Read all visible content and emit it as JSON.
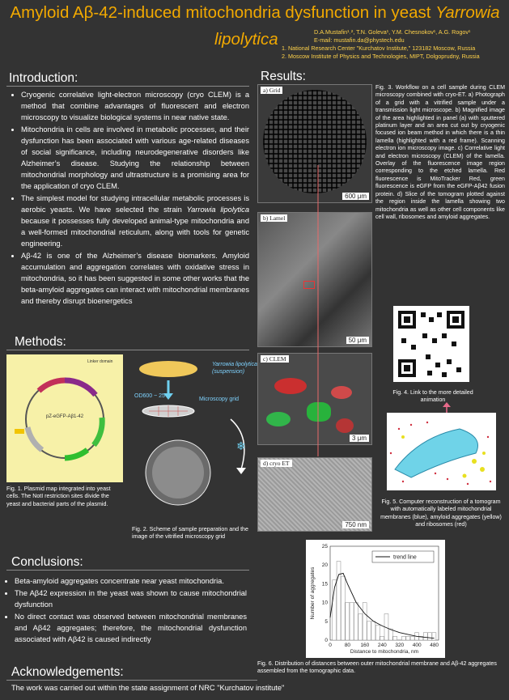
{
  "header": {
    "title_main": "Amyloid Aβ-42-induced mitochondria dysfunction in yeast ",
    "title_species": "Yarrowia",
    "title_species2": "lipolytica",
    "authors": "D.A.Mustafin¹˒², T.N. Goleva¹, Y.M. Chesnokov¹, A.G. Rogov¹",
    "email": "E-mail: mustafin.da@phystech.edu",
    "aff1": "1.  National Research Center \"Kurchatov Institute,\" 123182 Moscow, Russia",
    "aff2": "2.  Moscow Institute of Physics and Technologies, MIPT, Dolgoprudny, Russia"
  },
  "intro": {
    "heading": "Introduction:",
    "b1": "Cryogenic correlative light-electron microscopy (cryo CLEM) is a method  that combine advantages of fluorescent and electron microscopy to visualize biological systems in near native state.",
    "b2": "Mitochondria in cells are involved in metabolic processes, and their dysfunction has been associated with various age-related diseases of social significance, including neurodegenerative disorders like Alzheimer’s disease. Studying the relationship between mitochondrial morphology and ultrastructure is a promising area for the application of cryo CLEM.",
    "b3a": "The simplest model for studying intracellular metabolic processes is aerobic yeasts. We have selected the strain ",
    "b3i": "Yarrowia lipolytica",
    "b3b": " because it possesses fully developed animal-type mitochondria and a well-formed mitochondrial reticulum, along with tools for genetic engineering.",
    "b4": "Aβ-42 is one of the Alzheimer’s disease biomarkers. Amyloid accumulation and aggregation correlates with oxidative stress in mitochondria, so it has been suggested in some other works that the beta-amyloid aggregates can interact with mitochondrial membranes and thereby disrupt bioenergetics"
  },
  "methods": {
    "heading": "Methods:",
    "plasmid_name": "pZ-eGFP-Aβ1-42",
    "linker_label": "Linker domain",
    "fig1": "Fig. 1. Plasmid map integrated into yeast cells. The NotI restriction sites divide the yeast and bacterial parts of the plasmid.",
    "yeast_label": "Yarrowia lipolytica",
    "yeast_sub": "(suspension)",
    "od_label": "OD600 ~ 25",
    "grid_label": "Microscopy grid",
    "fig2": "Fig. 2. Scheme of sample preparation and the image of the vitrified microscopy grid"
  },
  "results": {
    "heading": "Results:",
    "panel_a": "a) Grid",
    "panel_b": "b) Lamel",
    "panel_c": "c) CLEM",
    "panel_d": "d) cryo ET",
    "scale_a": "600 μm",
    "scale_b": "50 μm",
    "scale_c": "3 μm",
    "scale_d": "750 nm",
    "fig3": "Fig. 3.  Workflow on a cell sample during CLEM microscopy combined with cryo-ET. a) Photograph of a grid with a vitrified sample under a transmission light microscope. b) Magnified image of the area highlighted in panel (a) with sputtered platinum layer and an area cut out by cryogenic focused ion beam method in which there is a thin lamella (highlighted with a red frame). Scanning electron ion microscopy image. c) Correlative light and electron microscopy (CLEM) of the lamella. Overlay of the fluorescence image region corresponding to the etched lamella. Red fluorescence is MitoTracker Red, green fluorescence is eGFP from the eGFP-Aβ42 fusion protein. d) Slice of the tomogram plotted against the region inside the lamella showing two mitochondria as well as other cell components like cell wall, ribosomes and amyloid aggregates.",
    "fig4": "Fig. 4. Link to the more detailed animation",
    "fig5": "Fig. 5. Computer reconstruction of a tomogram with automatically labeled mitochondrial membranes (blue), amyloid aggregates (yellow) and ribosomes (red)",
    "fig6": "Fig. 6. Distribution of distances between outer mitochondrial membrane and Aβ-42 aggregates assembled from the tomographic data."
  },
  "conclusions": {
    "heading": "Conclusions:",
    "c1": "Beta-amyloid aggregates concentrate near yeast mitochondria.",
    "c2": "The Aβ42 expression in the yeast was shown to cause mitochondrial dysfunction",
    "c3": "No direct contact was observed between mitochondrial membranes and Aβ42 aggregates; therefore, the mitochondrial dysfunction associated with Aβ42 is caused indirectly"
  },
  "ack": {
    "heading": "Acknowledgements:",
    "text": "The work was carried out within the state assignment of NRC \"Kurchatov institute\""
  },
  "chart_data": {
    "type": "bar",
    "x": [
      20,
      40,
      60,
      80,
      100,
      120,
      140,
      160,
      180,
      200,
      220,
      240,
      260,
      280,
      300,
      320,
      340,
      360,
      380,
      400,
      420,
      440,
      460,
      480
    ],
    "values": [
      16,
      21,
      17,
      10,
      10,
      10,
      7,
      10,
      5,
      5,
      4,
      1,
      7,
      3,
      1,
      0,
      1,
      1,
      1,
      2,
      1,
      2,
      2,
      2
    ],
    "trend": [
      [
        0,
        6
      ],
      [
        20,
        14
      ],
      [
        40,
        17.5
      ],
      [
        60,
        17.8
      ],
      [
        80,
        15
      ],
      [
        120,
        10
      ],
      [
        160,
        7
      ],
      [
        200,
        5
      ],
      [
        240,
        3.8
      ],
      [
        280,
        2.8
      ],
      [
        320,
        2
      ],
      [
        400,
        1
      ],
      [
        480,
        0.5
      ]
    ],
    "xlabel": "Distance to mitochondria, nm",
    "ylabel": "Number of aggregates",
    "xticks": [
      0,
      80,
      160,
      240,
      320,
      400,
      480
    ],
    "yticks": [
      0,
      5,
      10,
      15,
      20,
      25
    ],
    "xlim": [
      0,
      500
    ],
    "ylim": [
      0,
      25
    ],
    "legend": "trend line",
    "legend_position": "top-right"
  },
  "colors": {
    "accent": "#f2a900",
    "background": "#333333"
  }
}
